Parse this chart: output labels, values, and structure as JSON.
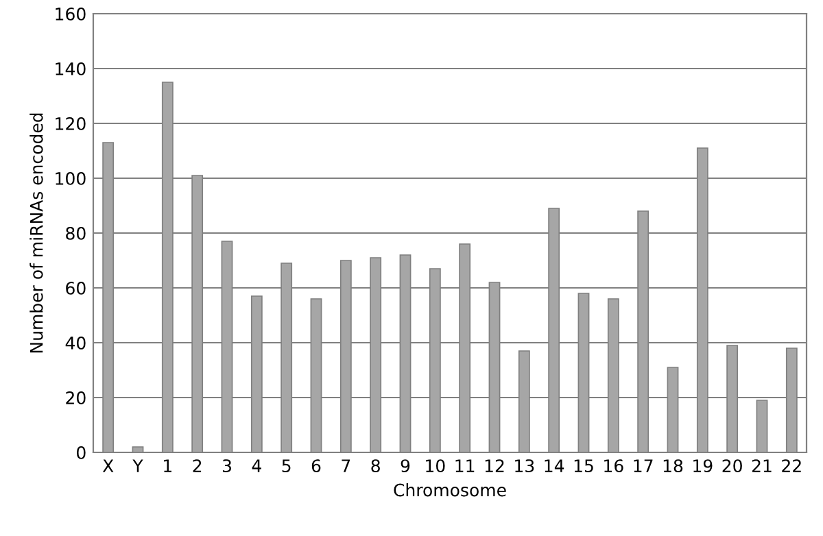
{
  "chart_data": {
    "type": "bar",
    "xlabel": "Chromosome",
    "ylabel": "Number of miRNAs encoded",
    "categories": [
      "X",
      "Y",
      "1",
      "2",
      "3",
      "4",
      "5",
      "6",
      "7",
      "8",
      "9",
      "10",
      "11",
      "12",
      "13",
      "14",
      "15",
      "16",
      "17",
      "18",
      "19",
      "20",
      "21",
      "22"
    ],
    "values": [
      113,
      2,
      135,
      101,
      77,
      57,
      69,
      56,
      70,
      71,
      72,
      67,
      76,
      62,
      37,
      89,
      58,
      56,
      88,
      31,
      111,
      39,
      19,
      38
    ],
    "color": "#a6a6a6",
    "ylim": [
      0,
      160
    ],
    "yticks": [
      0,
      20,
      40,
      60,
      80,
      100,
      120,
      140,
      160
    ],
    "grid": "y"
  }
}
